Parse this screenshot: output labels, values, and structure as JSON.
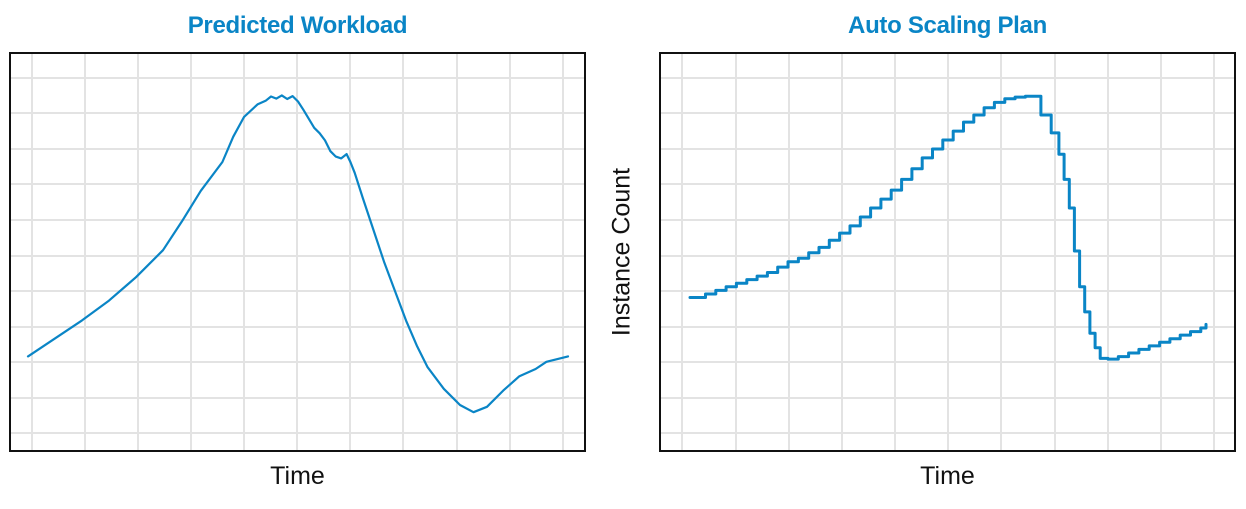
{
  "colors": {
    "line": "#0a85c6",
    "title": "#0a85c6",
    "grid": "#e3e3e3",
    "frame": "#111111"
  },
  "chart_data": [
    {
      "type": "line",
      "title": "Predicted Workload",
      "xlabel": "Time",
      "ylabel": "",
      "xlim": [
        0,
        100
      ],
      "ylim": [
        0,
        100
      ],
      "grid": true,
      "tick_labels": "hidden",
      "series": [
        {
          "style": "smooth",
          "points": [
            [
              0,
              21
            ],
            [
              5,
              26
            ],
            [
              10,
              31
            ],
            [
              15,
              36.5
            ],
            [
              20,
              43
            ],
            [
              25,
              50.5
            ],
            [
              28.5,
              58.5
            ],
            [
              32,
              67
            ],
            [
              36,
              75
            ],
            [
              38,
              82
            ],
            [
              40,
              87.5
            ],
            [
              42.5,
              91
            ],
            [
              44,
              92
            ],
            [
              45,
              93.2
            ],
            [
              46,
              92.6
            ],
            [
              47,
              93.5
            ],
            [
              48,
              92.5
            ],
            [
              49,
              93.3
            ],
            [
              50,
              91.8
            ],
            [
              51,
              89.5
            ],
            [
              52,
              87
            ],
            [
              53,
              84.5
            ],
            [
              54,
              83
            ],
            [
              55,
              81
            ],
            [
              56,
              78
            ],
            [
              57,
              76.5
            ],
            [
              58,
              76
            ],
            [
              59,
              77.2
            ],
            [
              59.7,
              75
            ],
            [
              60.5,
              72
            ],
            [
              62,
              65
            ],
            [
              64,
              56
            ],
            [
              66,
              47
            ],
            [
              68,
              39
            ],
            [
              70,
              31
            ],
            [
              72,
              24
            ],
            [
              74,
              18
            ],
            [
              77,
              12
            ],
            [
              80,
              7.5
            ],
            [
              82.5,
              5.5
            ],
            [
              85,
              7
            ],
            [
              88,
              11.5
            ],
            [
              91,
              15.5
            ],
            [
              94,
              17.5
            ],
            [
              96,
              19.5
            ],
            [
              100,
              21
            ]
          ]
        }
      ]
    },
    {
      "type": "line",
      "title": "Auto Scaling Plan",
      "xlabel": "Time",
      "ylabel": "Instance Count",
      "xlim": [
        0,
        100
      ],
      "ylim": [
        0,
        100
      ],
      "grid": true,
      "tick_labels": "hidden",
      "series": [
        {
          "style": "step",
          "points": [
            [
              0,
              37
            ],
            [
              3,
              38
            ],
            [
              5,
              39
            ],
            [
              7,
              40
            ],
            [
              9,
              41
            ],
            [
              11,
              42
            ],
            [
              13,
              43
            ],
            [
              15,
              44
            ],
            [
              17,
              45.5
            ],
            [
              19,
              47
            ],
            [
              21,
              48
            ],
            [
              23,
              49.5
            ],
            [
              25,
              51
            ],
            [
              27,
              53
            ],
            [
              29,
              55
            ],
            [
              31,
              57
            ],
            [
              33,
              59.5
            ],
            [
              35,
              62
            ],
            [
              37,
              64.5
            ],
            [
              39,
              67
            ],
            [
              41,
              70
            ],
            [
              43,
              73
            ],
            [
              45,
              76
            ],
            [
              47,
              78.5
            ],
            [
              49,
              81
            ],
            [
              51,
              83.5
            ],
            [
              53,
              86
            ],
            [
              55,
              88
            ],
            [
              57,
              90
            ],
            [
              59,
              91.5
            ],
            [
              61,
              92.5
            ],
            [
              63,
              93
            ],
            [
              65,
              93.2
            ],
            [
              68,
              88
            ],
            [
              70,
              83
            ],
            [
              71.5,
              77
            ],
            [
              72.5,
              70
            ],
            [
              73.5,
              62
            ],
            [
              74.5,
              50
            ],
            [
              75.5,
              40
            ],
            [
              76.5,
              33
            ],
            [
              77.5,
              27
            ],
            [
              78.5,
              23
            ],
            [
              79.5,
              20
            ],
            [
              81,
              19.8
            ],
            [
              83,
              20.5
            ],
            [
              85,
              21.5
            ],
            [
              87,
              22.5
            ],
            [
              89,
              23.5
            ],
            [
              91,
              24.5
            ],
            [
              93,
              25.5
            ],
            [
              95,
              26.5
            ],
            [
              97,
              27.5
            ],
            [
              99,
              28.5
            ],
            [
              100,
              29.5
            ]
          ]
        }
      ]
    }
  ]
}
